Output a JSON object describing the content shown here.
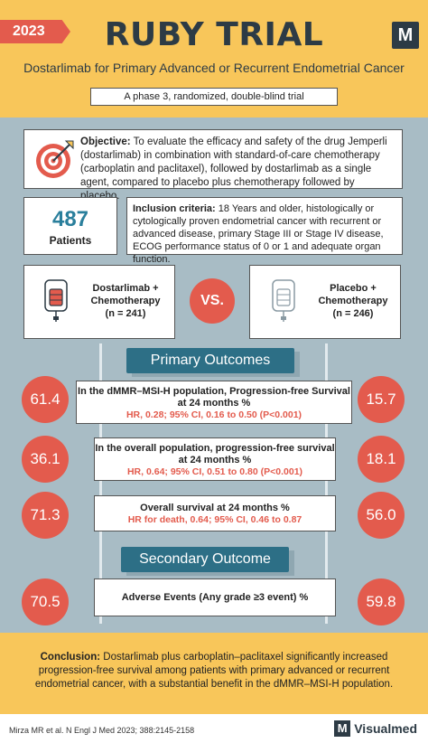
{
  "header": {
    "year": "2023",
    "title": "RUBY TRIAL",
    "logo_letter": "M",
    "subtitle": "Dostarlimab for Primary Advanced or Recurrent Endometrial Cancer",
    "trial_type": "A phase 3, randomized, double-blind trial"
  },
  "objective": {
    "label": "Objective:",
    "text": " To evaluate the efficacy and safety of the drug Jemperli (dostarlimab) in combination with standard-of-care chemotherapy (carboplatin and paclitaxel), followed by dostarlimab as a single agent, compared to placebo plus chemotherapy followed by placebo.",
    "icon": "target-icon"
  },
  "patients": {
    "count": "487",
    "label": "Patients"
  },
  "inclusion": {
    "label": "Inclusion criteria:",
    "text": " 18 Years and older, histologically or cytologically proven endometrial cancer with recurrent or advanced disease, primary Stage III or Stage IV disease, ECOG performance status of 0 or 1 and adequate organ function."
  },
  "arms": {
    "left": {
      "line1": "Dostarlimab +",
      "line2": "Chemotherapy",
      "line3": "(n = 241)",
      "icon": "iv-bag-icon"
    },
    "vs": "VS.",
    "right": {
      "line1": "Placebo +",
      "line2": "Chemotherapy",
      "line3": "(n =  246)",
      "icon": "iv-bag-icon"
    }
  },
  "primary": {
    "heading": "Primary Outcomes",
    "outcomes": [
      {
        "title": "In the dMMR–MSI-H population, Progression-free Survival at 24 months %",
        "hr": "HR, 0.28; 95% CI, 0.16 to 0.50 (P<0.001)",
        "left": "61.4",
        "right": "15.7"
      },
      {
        "title": "In the overall population, progression-free survival at 24 months %",
        "hr": "HR, 0.64; 95% CI, 0.51 to 0.80 (P<0.001)",
        "left": "36.1",
        "right": "18.1"
      },
      {
        "title": "Overall survival at 24 months %",
        "hr": "HR for death, 0.64; 95% CI, 0.46 to 0.87",
        "left": "71.3",
        "right": "56.0"
      }
    ]
  },
  "secondary": {
    "heading": "Secondary Outcome",
    "outcome": {
      "title": "Adverse Events (Any grade ≥3 event) %",
      "left": "70.5",
      "right": "59.8"
    }
  },
  "conclusion": {
    "label": "Conclusion:",
    "text": " Dostarlimab plus carboplatin–paclitaxel significantly increased progression-free survival among patients with primary advanced or recurrent endometrial cancer, with a substantial benefit in the dMMR–MSI-H population."
  },
  "footer": {
    "citation": "Mirza MR et al. N Engl J Med 2023; 388:2145-2158",
    "brand_letter": "M",
    "brand_name": "Visualmed"
  },
  "colors": {
    "accent": "#e35b4d",
    "header_bg": "#f8c65a",
    "main_bg": "#a8bcc5",
    "section_blue": "#2d6f86",
    "patients_blue": "#2a7f9c"
  }
}
